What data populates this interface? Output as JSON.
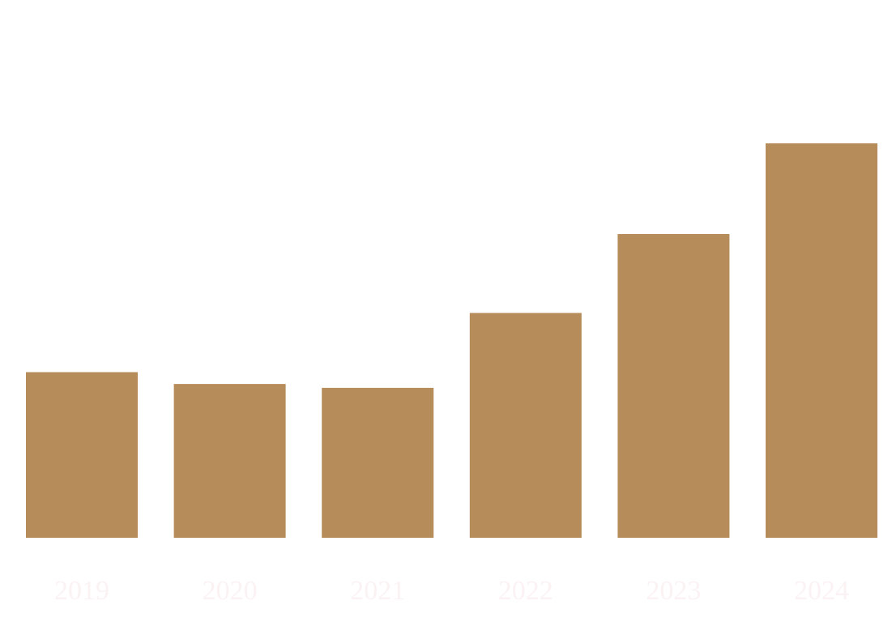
{
  "chart_data": {
    "type": "bar",
    "title": "",
    "xlabel": "",
    "ylabel": "",
    "categories": [
      "2019",
      "2020",
      "2021",
      "2022",
      "2023",
      "2024"
    ],
    "values": [
      2.1,
      1.95,
      1.9,
      2.85,
      3.85,
      5.0
    ],
    "ylim": [
      0,
      5
    ],
    "grid": false,
    "legend": "none",
    "colors": {
      "bar": "#B68C5A",
      "tick_label": "#FBF2F3",
      "background": "#FFFFFF"
    }
  }
}
